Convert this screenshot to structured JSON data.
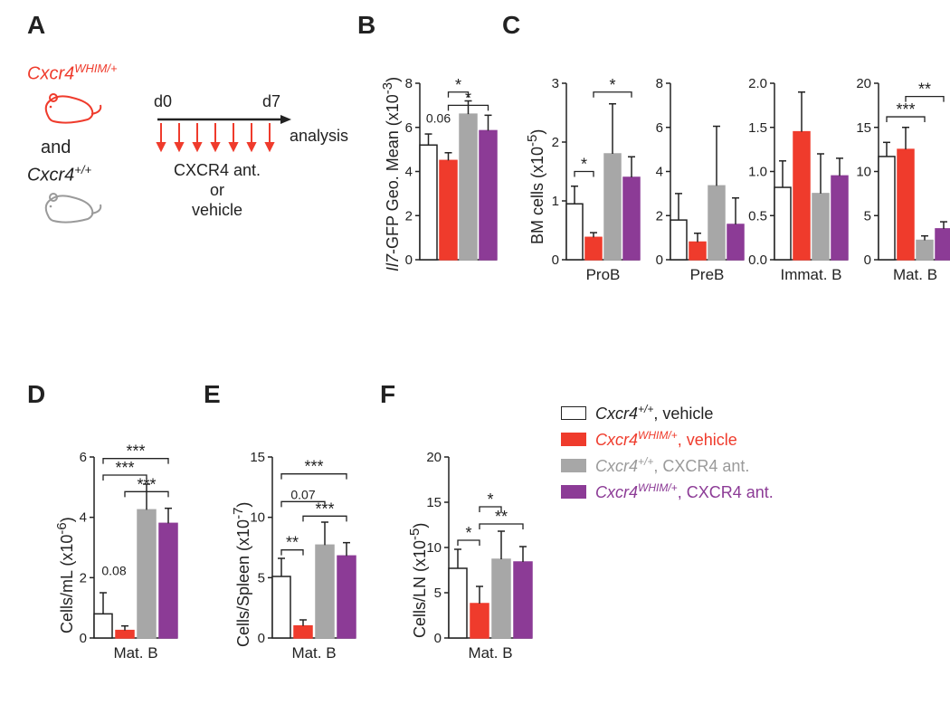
{
  "colors": {
    "wt_veh": {
      "fill": "#ffffff",
      "stroke": "#222222"
    },
    "whim_veh": {
      "fill": "#ef3b2c",
      "stroke": "#ef3b2c"
    },
    "wt_ant": {
      "fill": "#a7a7a7",
      "stroke": "#a7a7a7"
    },
    "whim_ant": {
      "fill": "#8c3b96",
      "stroke": "#8c3b96"
    },
    "text": "#222222",
    "red_text": "#ef3b2c",
    "gray_text": "#9a9a9a",
    "purple_text": "#8c3b96",
    "arrow_red": "#ef3b2c"
  },
  "panelA": {
    "label": "A",
    "genotype_whim": "Cxcr4",
    "genotype_whim_sup": "WHIM/+",
    "genotype_wt": "Cxcr4",
    "genotype_wt_sup": "+/+",
    "and": "and",
    "d0": "d0",
    "d7": "d7",
    "analysis": "analysis",
    "treat1": "CXCR4 ant.",
    "treat_or": "or",
    "treat2": "vehicle"
  },
  "panelB": {
    "label": "B",
    "ylabel_prefix_italic": "Il7",
    "ylabel_rest": "-GFP Geo. Mean (x10",
    "ylabel_sup": "-3",
    "ylabel_close": ")",
    "ymax": 8,
    "ytick": 2,
    "bars": [
      {
        "k": "wt_veh",
        "v": 5.2,
        "err": 0.5
      },
      {
        "k": "whim_veh",
        "v": 4.5,
        "err": 0.35
      },
      {
        "k": "wt_ant",
        "v": 6.6,
        "err": 0.6
      },
      {
        "k": "whim_ant",
        "v": 5.85,
        "err": 0.7
      }
    ],
    "annot": [
      {
        "type": "text",
        "from": 0,
        "to": 1,
        "label": "0.06",
        "y": 6.1,
        "small": true
      },
      {
        "type": "bracket",
        "from": 1,
        "to": 2,
        "label": "*",
        "y": 7.6
      },
      {
        "type": "bracket",
        "from": 1,
        "to": 3,
        "label": "*",
        "y": 7.0
      }
    ]
  },
  "panelC": {
    "label": "C",
    "ylabel": "BM cells (x10",
    "ylabel_sup": "-5",
    "ylabel_close": ")",
    "subs": [
      {
        "name": "ProB",
        "ymax": 3,
        "ytick": 1,
        "bars": [
          {
            "k": "wt_veh",
            "v": 0.95,
            "err": 0.3
          },
          {
            "k": "whim_veh",
            "v": 0.38,
            "err": 0.08
          },
          {
            "k": "wt_ant",
            "v": 1.8,
            "err": 0.85
          },
          {
            "k": "whim_ant",
            "v": 1.4,
            "err": 0.35
          }
        ],
        "annot": [
          {
            "type": "bracket",
            "from": 0,
            "to": 1,
            "label": "*",
            "y": 1.5
          },
          {
            "type": "bracket",
            "from": 1,
            "to": 3,
            "label": "*",
            "y": 2.85
          }
        ]
      },
      {
        "name": "PreB",
        "ymax": 8,
        "ytick": 2,
        "bars": [
          {
            "k": "wt_veh",
            "v": 1.8,
            "err": 1.2
          },
          {
            "k": "whim_veh",
            "v": 0.8,
            "err": 0.4
          },
          {
            "k": "wt_ant",
            "v": 3.35,
            "err": 2.7
          },
          {
            "k": "whim_ant",
            "v": 1.6,
            "err": 1.2
          }
        ],
        "annot": []
      },
      {
        "name": "Immat. B",
        "ymax": 2.0,
        "ytick": 0.5,
        "bars": [
          {
            "k": "wt_veh",
            "v": 0.82,
            "err": 0.3
          },
          {
            "k": "whim_veh",
            "v": 1.45,
            "err": 0.45
          },
          {
            "k": "wt_ant",
            "v": 0.75,
            "err": 0.45
          },
          {
            "k": "whim_ant",
            "v": 0.95,
            "err": 0.2
          }
        ],
        "annot": []
      },
      {
        "name": "Mat. B",
        "ymax": 20,
        "ytick": 5,
        "bars": [
          {
            "k": "wt_veh",
            "v": 11.7,
            "err": 1.6
          },
          {
            "k": "whim_veh",
            "v": 12.5,
            "err": 2.5
          },
          {
            "k": "wt_ant",
            "v": 2.2,
            "err": 0.5
          },
          {
            "k": "whim_ant",
            "v": 3.5,
            "err": 0.8
          }
        ],
        "annot": [
          {
            "type": "bracket",
            "from": 0,
            "to": 2,
            "label": "***",
            "y": 16.2
          },
          {
            "type": "bracket",
            "from": 1,
            "to": 3,
            "label": "**",
            "y": 18.5
          }
        ]
      }
    ]
  },
  "panelD": {
    "label": "D",
    "ylabel": "Cells/mL (x10",
    "ylabel_sup": "-6",
    "ylabel_close": ")",
    "xlabel": "Mat. B",
    "ymax": 6,
    "ytick": 2,
    "bars": [
      {
        "k": "wt_veh",
        "v": 0.8,
        "err": 0.7
      },
      {
        "k": "whim_veh",
        "v": 0.25,
        "err": 0.15
      },
      {
        "k": "wt_ant",
        "v": 4.25,
        "err": 0.85
      },
      {
        "k": "whim_ant",
        "v": 3.8,
        "err": 0.5
      }
    ],
    "annot": [
      {
        "type": "text",
        "from": 0,
        "to": 1,
        "label": "0.08",
        "y": 2.0,
        "small": true
      },
      {
        "type": "bracket",
        "from": 0,
        "to": 2,
        "label": "***",
        "y": 5.4
      },
      {
        "type": "bracket",
        "from": 0,
        "to": 3,
        "label": "***",
        "y": 5.95
      },
      {
        "type": "bracket",
        "from": 1,
        "to": 3,
        "label": "***",
        "y": 4.85
      }
    ]
  },
  "panelE": {
    "label": "E",
    "ylabel": "Cells/Spleen (x10",
    "ylabel_sup": "-7",
    "ylabel_close": ")",
    "xlabel": "Mat. B",
    "ymax": 15,
    "ytick": 5,
    "bars": [
      {
        "k": "wt_veh",
        "v": 5.1,
        "err": 1.5
      },
      {
        "k": "whim_veh",
        "v": 1.0,
        "err": 0.5
      },
      {
        "k": "wt_ant",
        "v": 7.7,
        "err": 1.9
      },
      {
        "k": "whim_ant",
        "v": 6.8,
        "err": 1.1
      }
    ],
    "annot": [
      {
        "type": "bracket",
        "from": 0,
        "to": 1,
        "label": "**",
        "y": 7.3
      },
      {
        "type": "text",
        "from": 0,
        "to": 2,
        "label": "0.07",
        "y": 11.3,
        "small": true,
        "bracket": true
      },
      {
        "type": "bracket",
        "from": 0,
        "to": 3,
        "label": "***",
        "y": 13.6
      },
      {
        "type": "bracket",
        "from": 1,
        "to": 3,
        "label": "***",
        "y": 10.1
      }
    ]
  },
  "panelF": {
    "label": "F",
    "ylabel": "Cells/LN (x10",
    "ylabel_sup": "-5",
    "ylabel_close": ")",
    "xlabel": "Mat. B",
    "ymax": 20,
    "ytick": 5,
    "bars": [
      {
        "k": "wt_veh",
        "v": 7.7,
        "err": 2.1
      },
      {
        "k": "whim_veh",
        "v": 3.8,
        "err": 1.9
      },
      {
        "k": "wt_ant",
        "v": 8.7,
        "err": 3.1
      },
      {
        "k": "whim_ant",
        "v": 8.4,
        "err": 1.7
      }
    ],
    "annot": [
      {
        "type": "bracket",
        "from": 0,
        "to": 1,
        "label": "*",
        "y": 10.8
      },
      {
        "type": "bracket",
        "from": 1,
        "to": 2,
        "label": "*",
        "y": 14.5
      },
      {
        "type": "bracket",
        "from": 1,
        "to": 3,
        "label": "**",
        "y": 12.6
      }
    ]
  },
  "legend": {
    "items": [
      {
        "k": "wt_veh",
        "pref_it": "Cxcr4",
        "sup": "+/+",
        "rest": ", vehicle",
        "color": "#222222"
      },
      {
        "k": "whim_veh",
        "pref_it": "Cxcr4",
        "sup": "WHIM/+",
        "rest": ", vehicle",
        "color": "#ef3b2c"
      },
      {
        "k": "wt_ant",
        "pref_it": "Cxcr4",
        "sup": "+/+",
        "rest": ", CXCR4 ant.",
        "color": "#9a9a9a"
      },
      {
        "k": "whim_ant",
        "pref_it": "Cxcr4",
        "sup": "WHIM/+",
        "rest": ", CXCR4 ant.",
        "color": "#8c3b96"
      }
    ]
  }
}
